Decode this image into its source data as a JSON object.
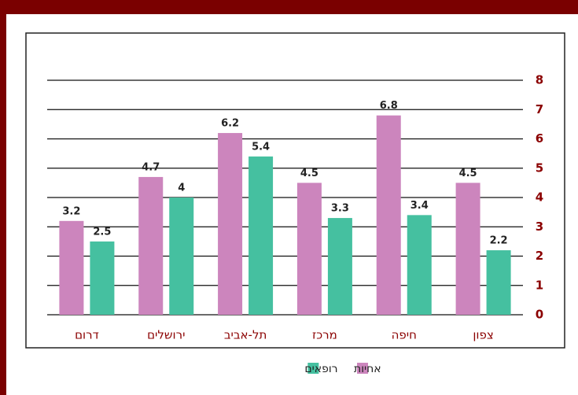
{
  "chart_data": {
    "type": "bar",
    "categories": [
      "דרום",
      "ירושלים",
      "תל-אביב",
      "מרכז",
      "חיפה",
      "צפון"
    ],
    "series": [
      {
        "name": "אחיות",
        "color": "#cc85bd",
        "values": [
          3.2,
          4.7,
          6.2,
          4.5,
          6.8,
          4.5
        ]
      },
      {
        "name": "רופאים",
        "color": "#45c0a0",
        "values": [
          2.5,
          4,
          5.4,
          3.3,
          3.4,
          2.2
        ]
      }
    ],
    "ylim": [
      0,
      8
    ],
    "yticks": [
      0,
      1,
      2,
      3,
      4,
      5,
      6,
      7,
      8
    ],
    "grid": true,
    "legend": "bottom"
  }
}
